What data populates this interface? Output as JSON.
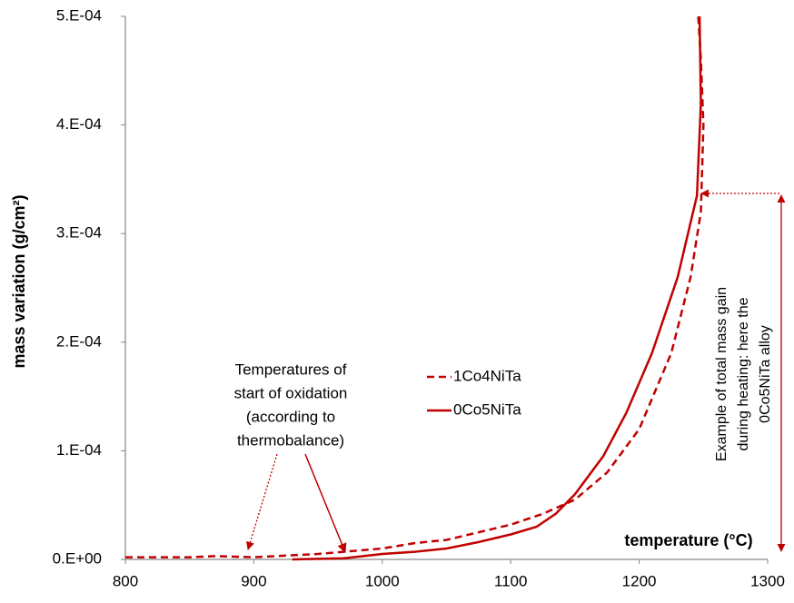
{
  "chart_data": {
    "type": "line",
    "y_label": "mass variation (g/cm²)",
    "x_label": "temperature (°C)",
    "xlim": [
      800,
      1300
    ],
    "xticks": [
      800,
      900,
      1000,
      1100,
      1200,
      1300
    ],
    "ylim": [
      0,
      0.0005
    ],
    "yticks": [
      {
        "value": 0,
        "label": "0.E+00"
      },
      {
        "value": 0.0001,
        "label": "1.E-04"
      },
      {
        "value": 0.0002,
        "label": "2.E-04"
      },
      {
        "value": 0.0003,
        "label": "3.E-04"
      },
      {
        "value": 0.0004,
        "label": "4.E-04"
      },
      {
        "value": 0.0005,
        "label": "5.E-04"
      }
    ],
    "grid": false,
    "series": [
      {
        "name": "1Co4NiTa",
        "color": "#c00000",
        "dashed": true,
        "x": [
          800,
          850,
          870,
          900,
          950,
          1000,
          1025,
          1050,
          1075,
          1100,
          1125,
          1150,
          1175,
          1200,
          1225,
          1240,
          1248,
          1250,
          1248,
          1246
        ],
        "values": [
          2e-06,
          2e-06,
          3e-06,
          2e-06,
          5e-06,
          1e-05,
          1.5e-05,
          1.8e-05,
          2.5e-05,
          3.2e-05,
          4.2e-05,
          5.5e-05,
          8e-05,
          0.00012,
          0.00019,
          0.00026,
          0.00032,
          0.0004,
          0.00046,
          0.0005
        ]
      },
      {
        "name": "0Co5NiTa",
        "color": "#c00000",
        "dashed": false,
        "x": [
          930,
          970,
          1000,
          1025,
          1050,
          1075,
          1100,
          1120,
          1135,
          1150,
          1172,
          1190,
          1210,
          1230,
          1245,
          1248,
          1247
        ],
        "values": [
          0,
          1e-06,
          5e-06,
          7e-06,
          1e-05,
          1.6e-05,
          2.3e-05,
          3e-05,
          4.2e-05,
          6e-05,
          9.5e-05,
          0.000135,
          0.00019,
          0.00026,
          0.000335,
          0.00042,
          0.0005
        ]
      }
    ],
    "annotations": [
      {
        "lines": [
          "Temperatures of",
          "start of oxidation",
          "(according to",
          "thermobalance)"
        ]
      },
      {
        "lines": [
          "Example of total mass gain",
          "during heating: here the",
          "0Co5NiTa alloy"
        ]
      }
    ]
  }
}
